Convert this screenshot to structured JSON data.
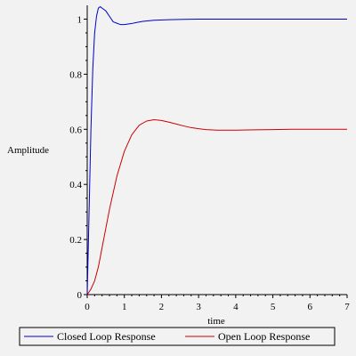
{
  "chart_data": {
    "type": "line",
    "title": "",
    "xlabel": "time",
    "ylabel": "Amplitude",
    "xlim": [
      0,
      7
    ],
    "ylim": [
      0,
      1.05
    ],
    "x_ticks": [
      0,
      1,
      2,
      3,
      4,
      5,
      6,
      7
    ],
    "y_ticks": [
      0,
      0.2,
      0.4,
      0.6,
      0.8,
      1
    ],
    "y_tick_labels": [
      "0",
      "0.2",
      "0.4",
      "0.6",
      "0.8",
      "1"
    ],
    "grid": false,
    "legend_position": "bottom",
    "series": [
      {
        "name": "Closed Loop Response",
        "color": "#0000cc",
        "x": [
          0,
          0.05,
          0.1,
          0.15,
          0.2,
          0.25,
          0.3,
          0.35,
          0.4,
          0.45,
          0.5,
          0.55,
          0.6,
          0.7,
          0.8,
          0.9,
          1.0,
          1.1,
          1.2,
          1.3,
          1.5,
          1.8,
          2.2,
          2.6,
          3.0,
          4.0,
          5.0,
          6.0,
          7.0
        ],
        "y": [
          0.0,
          0.3,
          0.6,
          0.82,
          0.95,
          1.01,
          1.04,
          1.045,
          1.04,
          1.035,
          1.03,
          1.02,
          1.01,
          0.99,
          0.985,
          0.98,
          0.98,
          0.982,
          0.984,
          0.987,
          0.992,
          0.996,
          0.998,
          0.999,
          1.0,
          1.0,
          1.0,
          1.0,
          1.0
        ]
      },
      {
        "name": "Open Loop Response",
        "color": "#cc0000",
        "x": [
          0,
          0.1,
          0.2,
          0.3,
          0.4,
          0.5,
          0.6,
          0.8,
          1.0,
          1.2,
          1.4,
          1.6,
          1.8,
          2.0,
          2.2,
          2.4,
          2.6,
          2.8,
          3.0,
          3.2,
          3.5,
          3.8,
          4.0,
          4.5,
          5.0,
          5.5,
          6.0,
          7.0
        ],
        "y": [
          0.0,
          0.02,
          0.05,
          0.1,
          0.17,
          0.24,
          0.31,
          0.43,
          0.52,
          0.58,
          0.615,
          0.63,
          0.635,
          0.632,
          0.626,
          0.619,
          0.612,
          0.606,
          0.602,
          0.599,
          0.597,
          0.597,
          0.597,
          0.598,
          0.599,
          0.6,
          0.6,
          0.6
        ]
      }
    ]
  }
}
